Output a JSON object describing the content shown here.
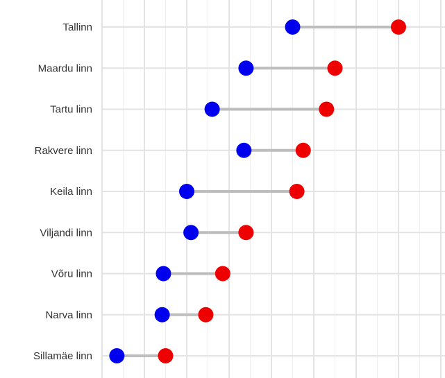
{
  "chart_data": {
    "type": "dumbbell",
    "title": "",
    "xlabel": "",
    "ylabel": "",
    "categories": [
      "Tallinn",
      "Maardu linn",
      "Tartu linn",
      "Rakvere linn",
      "Keila linn",
      "Viljandi linn",
      "Võru linn",
      "Narva linn",
      "Sillamäe linn"
    ],
    "series": [
      {
        "values": [
          4.5,
          3.4,
          2.6,
          3.35,
          2.0,
          2.1,
          1.45,
          1.42,
          0.35
        ]
      },
      {
        "values": [
          7.0,
          5.5,
          5.3,
          4.75,
          4.6,
          3.4,
          2.85,
          2.45,
          1.5
        ]
      }
    ],
    "xlim": [
      0,
      8
    ],
    "grid": true,
    "colors": {
      "start": "#0000ee",
      "end": "#ee0000",
      "segment": "#bdbdbd"
    }
  }
}
